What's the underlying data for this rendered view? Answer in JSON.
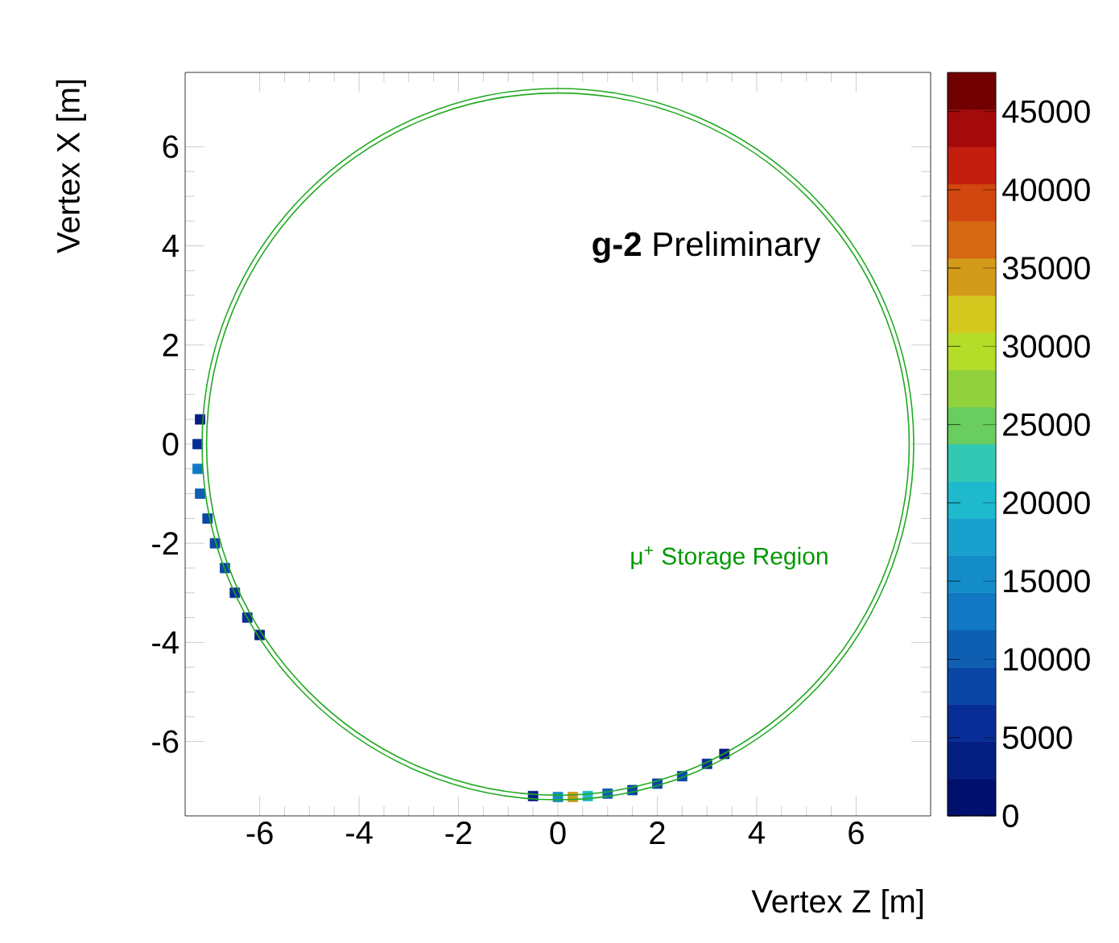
{
  "chart_data": {
    "type": "scatter",
    "xlabel": "Vertex Z [m]",
    "ylabel": "Vertex X [m]",
    "xlim": [
      -7.5,
      7.5
    ],
    "ylim": [
      -7.5,
      7.5
    ],
    "xticks": [
      -6,
      -4,
      -2,
      0,
      2,
      4,
      6
    ],
    "yticks": [
      -6,
      -4,
      -2,
      0,
      2,
      4,
      6
    ],
    "clim": [
      0,
      47500
    ],
    "cticks": [
      0,
      5000,
      10000,
      15000,
      20000,
      25000,
      30000,
      35000,
      40000,
      45000
    ],
    "marker": "square",
    "x": [
      -7.2,
      -7.25,
      -7.25,
      -7.2,
      -7.05,
      -6.9,
      -6.7,
      -6.5,
      -6.25,
      -6.0,
      -0.5,
      0,
      0.3,
      0.6,
      1.0,
      1.5,
      2.0,
      2.5,
      3.0,
      3.35
    ],
    "values": [
      0.5,
      0,
      -0.5,
      -1.0,
      -1.5,
      -2.0,
      -2.5,
      -3.0,
      -3.5,
      -3.85,
      -7.1,
      -7.12,
      -7.12,
      -7.1,
      -7.05,
      -6.98,
      -6.85,
      -6.7,
      -6.45,
      -6.25
    ],
    "cvalues": [
      3000,
      6000,
      12000,
      10000,
      9000,
      8000,
      7000,
      6000,
      5000,
      3000,
      4000,
      15000,
      35000,
      20000,
      10000,
      9000,
      8000,
      7000,
      5000,
      3000
    ],
    "annotations": [
      "μ$^{+}$ Storage Region",
      "**g-2** Preliminary"
    ]
  }
}
